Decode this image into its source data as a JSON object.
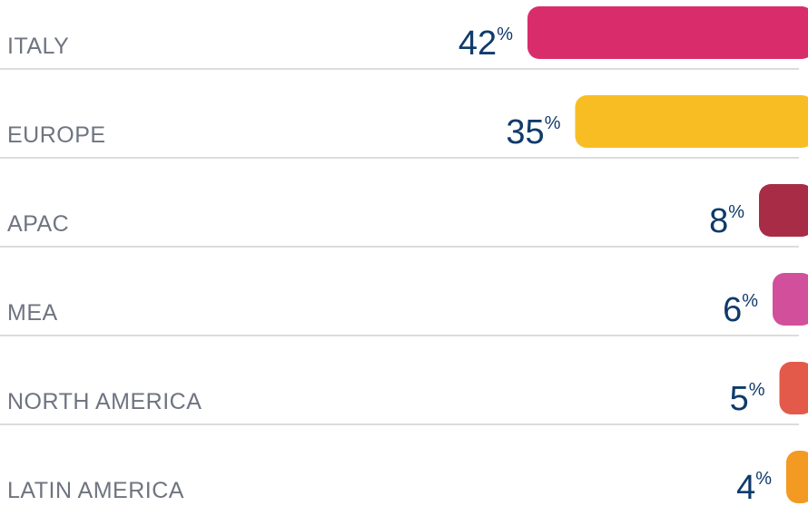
{
  "chart_data": {
    "type": "bar",
    "orientation": "horizontal",
    "categories": [
      "ITALY",
      "EUROPE",
      "APAC",
      "MEA",
      "NORTH AMERICA",
      "LATIN AMERICA"
    ],
    "values": [
      42,
      35,
      8,
      6,
      5,
      4
    ],
    "value_labels": [
      "42%",
      "35%",
      "8%",
      "6%",
      "5%",
      "4%"
    ],
    "colors": [
      "#d92d6b",
      "#f9bd24",
      "#a82c45",
      "#d24f9c",
      "#e35a4a",
      "#f39a22"
    ]
  }
}
